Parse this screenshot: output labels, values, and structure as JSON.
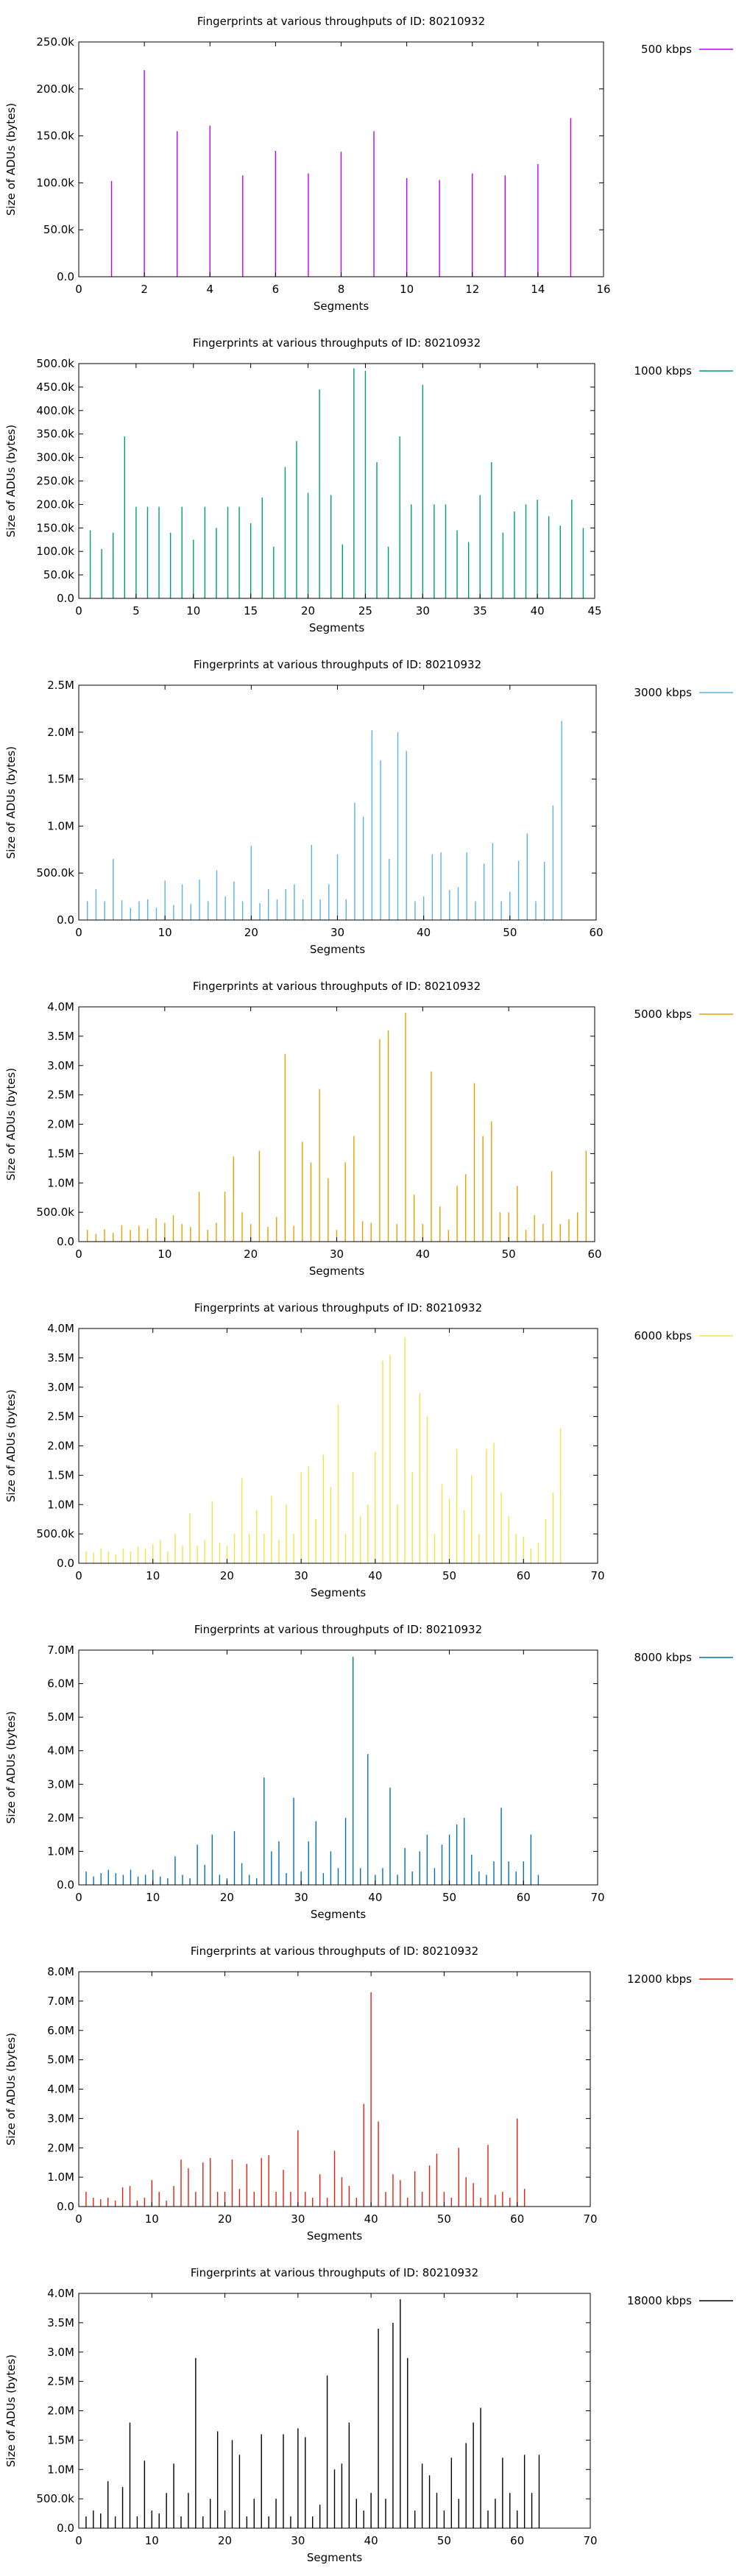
{
  "chart_data": [
    {
      "type": "bar",
      "title": "Fingerprints at various throughputs of ID: 80210932",
      "xlabel": "Segments",
      "ylabel": "Size of ADUs (bytes)",
      "series": [
        {
          "name": "500 kbps",
          "color": "#c000ff"
        }
      ],
      "xlim": [
        0,
        16
      ],
      "ylim": [
        0,
        250000
      ],
      "xticks": [
        0,
        2,
        4,
        6,
        8,
        10,
        12,
        14,
        16
      ],
      "yticks": [
        0,
        50000,
        100000,
        150000,
        200000,
        250000
      ],
      "ytick_labels": [
        "0.0",
        "50.0k",
        "100.0k",
        "150.0k",
        "200.0k",
        "250.0k"
      ],
      "grid": false,
      "legend_position": "top-right",
      "x": [
        1,
        2,
        3,
        4,
        5,
        6,
        7,
        8,
        9,
        10,
        11,
        12,
        13,
        14,
        15
      ],
      "values": [
        102000,
        220000,
        155000,
        161000,
        108000,
        134000,
        110000,
        133000,
        155000,
        105000,
        103000,
        110000,
        108000,
        120000,
        169000
      ]
    },
    {
      "type": "bar",
      "title": "Fingerprints at various throughputs of ID: 80210932",
      "xlabel": "Segments",
      "ylabel": "Size of ADUs (bytes)",
      "series": [
        {
          "name": "1000 kbps",
          "color": "#009e73"
        }
      ],
      "xlim": [
        0,
        45
      ],
      "ylim": [
        0,
        500000
      ],
      "xticks": [
        0,
        5,
        10,
        15,
        20,
        25,
        30,
        35,
        40,
        45
      ],
      "yticks": [
        0,
        50000,
        100000,
        150000,
        200000,
        250000,
        300000,
        350000,
        400000,
        450000,
        500000
      ],
      "ytick_labels": [
        "0.0",
        "50.0k",
        "100.0k",
        "150.0k",
        "200.0k",
        "250.0k",
        "300.0k",
        "350.0k",
        "400.0k",
        "450.0k",
        "500.0k"
      ],
      "grid": false,
      "legend_position": "top-right",
      "x": [
        1,
        2,
        3,
        4,
        5,
        6,
        7,
        8,
        9,
        10,
        11,
        12,
        13,
        14,
        15,
        16,
        17,
        18,
        19,
        20,
        21,
        22,
        23,
        24,
        25,
        26,
        27,
        28,
        29,
        30,
        31,
        32,
        33,
        34,
        35,
        36,
        37,
        38,
        39,
        40,
        41,
        42,
        43,
        44
      ],
      "values": [
        145000,
        105000,
        140000,
        345000,
        195000,
        195000,
        195000,
        140000,
        195000,
        125000,
        195000,
        150000,
        195000,
        195000,
        160000,
        215000,
        110000,
        280000,
        335000,
        225000,
        445000,
        220000,
        115000,
        490000,
        485000,
        290000,
        110000,
        345000,
        200000,
        455000,
        200000,
        200000,
        145000,
        120000,
        220000,
        290000,
        140000,
        185000,
        200000,
        210000,
        175000,
        155000,
        210000,
        150000
      ]
    },
    {
      "type": "bar",
      "title": "Fingerprints at various throughputs of ID: 80210932",
      "xlabel": "Segments",
      "ylabel": "Size of ADUs (bytes)",
      "series": [
        {
          "name": "3000 kbps",
          "color": "#56b4e9"
        }
      ],
      "xlim": [
        0,
        60
      ],
      "ylim": [
        0,
        2500000
      ],
      "xticks": [
        0,
        10,
        20,
        30,
        40,
        50,
        60
      ],
      "yticks": [
        0,
        500000,
        1000000,
        1500000,
        2000000,
        2500000
      ],
      "ytick_labels": [
        "0.0",
        "500.0k",
        "1.0M",
        "1.5M",
        "2.0M",
        "2.5M"
      ],
      "grid": false,
      "legend_position": "top-right",
      "x": [
        1,
        2,
        3,
        4,
        5,
        6,
        7,
        8,
        9,
        10,
        11,
        12,
        13,
        14,
        15,
        16,
        17,
        18,
        19,
        20,
        21,
        22,
        23,
        24,
        25,
        26,
        27,
        28,
        29,
        30,
        31,
        32,
        33,
        34,
        35,
        36,
        37,
        38,
        39,
        40,
        41,
        42,
        43,
        44,
        45,
        46,
        47,
        48,
        49,
        50,
        51,
        52,
        53,
        54,
        55,
        56
      ],
      "values": [
        200000,
        330000,
        200000,
        650000,
        210000,
        130000,
        200000,
        220000,
        130000,
        420000,
        160000,
        380000,
        170000,
        430000,
        200000,
        530000,
        250000,
        410000,
        200000,
        790000,
        180000,
        330000,
        220000,
        330000,
        380000,
        220000,
        800000,
        220000,
        380000,
        700000,
        220000,
        1250000,
        1100000,
        2020000,
        1700000,
        650000,
        2000000,
        1800000,
        200000,
        250000,
        700000,
        720000,
        320000,
        350000,
        720000,
        200000,
        600000,
        820000,
        200000,
        300000,
        630000,
        920000,
        200000,
        620000,
        1220000,
        2120000
      ]
    },
    {
      "type": "bar",
      "title": "Fingerprints at various throughputs of ID: 80210932",
      "xlabel": "Segments",
      "ylabel": "Size of ADUs (bytes)",
      "series": [
        {
          "name": "5000 kbps",
          "color": "#e69f00"
        }
      ],
      "xlim": [
        0,
        60
      ],
      "ylim": [
        0,
        4000000
      ],
      "xticks": [
        0,
        10,
        20,
        30,
        40,
        50,
        60
      ],
      "yticks": [
        0,
        500000,
        1000000,
        1500000,
        2000000,
        2500000,
        3000000,
        3500000,
        4000000
      ],
      "ytick_labels": [
        "0.0",
        "500.0k",
        "1.0M",
        "1.5M",
        "2.0M",
        "2.5M",
        "3.0M",
        "3.5M",
        "4.0M"
      ],
      "grid": false,
      "legend_position": "top-right",
      "x": [
        1,
        2,
        3,
        4,
        5,
        6,
        7,
        8,
        9,
        10,
        11,
        12,
        13,
        14,
        15,
        16,
        17,
        18,
        19,
        20,
        21,
        22,
        23,
        24,
        25,
        26,
        27,
        28,
        29,
        30,
        31,
        32,
        33,
        34,
        35,
        36,
        37,
        38,
        39,
        40,
        41,
        42,
        43,
        44,
        45,
        46,
        47,
        48,
        49,
        50,
        51,
        52,
        53,
        54,
        55,
        56,
        57,
        58,
        59
      ],
      "values": [
        200000,
        130000,
        210000,
        150000,
        280000,
        200000,
        270000,
        220000,
        400000,
        320000,
        450000,
        300000,
        250000,
        850000,
        200000,
        320000,
        850000,
        1450000,
        500000,
        300000,
        1550000,
        250000,
        420000,
        3200000,
        270000,
        1700000,
        1350000,
        2600000,
        1080000,
        200000,
        1350000,
        1800000,
        350000,
        320000,
        3450000,
        3600000,
        300000,
        3900000,
        800000,
        300000,
        2900000,
        600000,
        200000,
        950000,
        1150000,
        2700000,
        1800000,
        2050000,
        500000,
        500000,
        950000,
        200000,
        450000,
        300000,
        1200000,
        300000,
        380000,
        500000,
        1550000
      ]
    },
    {
      "type": "bar",
      "title": "Fingerprints at various throughputs of ID: 80210932",
      "xlabel": "Segments",
      "ylabel": "Size of ADUs (bytes)",
      "series": [
        {
          "name": "6000 kbps",
          "color": "#f0e442"
        }
      ],
      "xlim": [
        0,
        70
      ],
      "ylim": [
        0,
        4000000
      ],
      "xticks": [
        0,
        10,
        20,
        30,
        40,
        50,
        60,
        70
      ],
      "yticks": [
        0,
        500000,
        1000000,
        1500000,
        2000000,
        2500000,
        3000000,
        3500000,
        4000000
      ],
      "ytick_labels": [
        "0.0",
        "500.0k",
        "1.0M",
        "1.5M",
        "2.0M",
        "2.5M",
        "3.0M",
        "3.5M",
        "4.0M"
      ],
      "grid": false,
      "legend_position": "top-right",
      "x": [
        1,
        2,
        3,
        4,
        5,
        6,
        7,
        8,
        9,
        10,
        11,
        12,
        13,
        14,
        15,
        16,
        17,
        18,
        19,
        20,
        21,
        22,
        23,
        24,
        25,
        26,
        27,
        28,
        29,
        30,
        31,
        32,
        33,
        34,
        35,
        36,
        37,
        38,
        39,
        40,
        41,
        42,
        43,
        44,
        45,
        46,
        47,
        48,
        49,
        50,
        51,
        52,
        53,
        54,
        55,
        56,
        57,
        58,
        59,
        60,
        61,
        62,
        63,
        64,
        65
      ],
      "values": [
        200000,
        180000,
        250000,
        200000,
        150000,
        250000,
        200000,
        280000,
        250000,
        320000,
        400000,
        200000,
        500000,
        300000,
        850000,
        300000,
        400000,
        1050000,
        350000,
        300000,
        500000,
        1450000,
        500000,
        900000,
        500000,
        1150000,
        400000,
        1000000,
        500000,
        1550000,
        1650000,
        750000,
        1850000,
        1300000,
        2700000,
        500000,
        1550000,
        800000,
        1000000,
        1900000,
        3450000,
        3550000,
        1000000,
        3850000,
        1550000,
        2900000,
        2500000,
        500000,
        1350000,
        1100000,
        1950000,
        900000,
        1500000,
        500000,
        1950000,
        2050000,
        1200000,
        800000,
        500000,
        450000,
        250000,
        350000,
        750000,
        1200000,
        2300000
      ]
    },
    {
      "type": "bar",
      "title": "Fingerprints at various throughputs of ID: 80210932",
      "xlabel": "Segments",
      "ylabel": "Size of ADUs (bytes)",
      "series": [
        {
          "name": "8000 kbps",
          "color": "#0072b2"
        }
      ],
      "xlim": [
        0,
        70
      ],
      "ylim": [
        0,
        7000000
      ],
      "xticks": [
        0,
        10,
        20,
        30,
        40,
        50,
        60,
        70
      ],
      "yticks": [
        0,
        1000000,
        2000000,
        3000000,
        4000000,
        5000000,
        6000000,
        7000000
      ],
      "ytick_labels": [
        "0.0",
        "1.0M",
        "2.0M",
        "3.0M",
        "4.0M",
        "5.0M",
        "6.0M",
        "7.0M"
      ],
      "grid": false,
      "legend_position": "top-right",
      "x": [
        1,
        2,
        3,
        4,
        5,
        6,
        7,
        8,
        9,
        10,
        11,
        12,
        13,
        14,
        15,
        16,
        17,
        18,
        19,
        20,
        21,
        22,
        23,
        24,
        25,
        26,
        27,
        28,
        29,
        30,
        31,
        32,
        33,
        34,
        35,
        36,
        37,
        38,
        39,
        40,
        41,
        42,
        43,
        44,
        45,
        46,
        47,
        48,
        49,
        50,
        51,
        52,
        53,
        54,
        55,
        56,
        57,
        58,
        59,
        60,
        61,
        62
      ],
      "values": [
        400000,
        250000,
        350000,
        450000,
        350000,
        300000,
        450000,
        250000,
        300000,
        450000,
        250000,
        200000,
        850000,
        300000,
        200000,
        1200000,
        600000,
        1500000,
        300000,
        200000,
        1600000,
        650000,
        300000,
        200000,
        3200000,
        1000000,
        1300000,
        350000,
        2600000,
        400000,
        1300000,
        1900000,
        350000,
        1000000,
        500000,
        2000000,
        6800000,
        500000,
        3900000,
        300000,
        500000,
        2900000,
        300000,
        1100000,
        400000,
        1000000,
        1500000,
        500000,
        1200000,
        1500000,
        1800000,
        2000000,
        900000,
        400000,
        300000,
        700000,
        2300000,
        700000,
        400000,
        700000,
        1500000,
        300000
      ]
    },
    {
      "type": "bar",
      "title": "Fingerprints at various throughputs of ID: 80210932",
      "xlabel": "Segments",
      "ylabel": "Size of ADUs (bytes)",
      "series": [
        {
          "name": "12000 kbps",
          "color": "#e51e10"
        }
      ],
      "xlim": [
        0,
        70
      ],
      "ylim": [
        0,
        8000000
      ],
      "xticks": [
        0,
        10,
        20,
        30,
        40,
        50,
        60,
        70
      ],
      "yticks": [
        0,
        1000000,
        2000000,
        3000000,
        4000000,
        5000000,
        6000000,
        7000000,
        8000000
      ],
      "ytick_labels": [
        "0.0",
        "1.0M",
        "2.0M",
        "3.0M",
        "4.0M",
        "5.0M",
        "6.0M",
        "7.0M",
        "8.0M"
      ],
      "grid": false,
      "legend_position": "top-right",
      "x": [
        1,
        2,
        3,
        4,
        5,
        6,
        7,
        8,
        9,
        10,
        11,
        12,
        13,
        14,
        15,
        16,
        17,
        18,
        19,
        20,
        21,
        22,
        23,
        24,
        25,
        26,
        27,
        28,
        29,
        30,
        31,
        32,
        33,
        34,
        35,
        36,
        37,
        38,
        39,
        40,
        41,
        42,
        43,
        44,
        45,
        46,
        47,
        48,
        49,
        50,
        51,
        52,
        53,
        54,
        55,
        56,
        57,
        58,
        59,
        60,
        61
      ],
      "values": [
        500000,
        300000,
        250000,
        300000,
        200000,
        650000,
        700000,
        200000,
        300000,
        900000,
        500000,
        200000,
        700000,
        1600000,
        1300000,
        500000,
        1500000,
        1650000,
        500000,
        500000,
        1600000,
        600000,
        1450000,
        500000,
        1650000,
        1750000,
        500000,
        1250000,
        500000,
        2600000,
        500000,
        300000,
        1100000,
        300000,
        1900000,
        1000000,
        700000,
        300000,
        3500000,
        7300000,
        2900000,
        500000,
        1100000,
        900000,
        300000,
        1200000,
        500000,
        1400000,
        1800000,
        500000,
        300000,
        2000000,
        1000000,
        800000,
        300000,
        2100000,
        400000,
        500000,
        300000,
        3000000,
        600000
      ]
    },
    {
      "type": "bar",
      "title": "Fingerprints at various throughputs of ID: 80210932",
      "xlabel": "Segments",
      "ylabel": "Size of ADUs (bytes)",
      "series": [
        {
          "name": "18000 kbps",
          "color": "#000000"
        }
      ],
      "xlim": [
        0,
        70
      ],
      "ylim": [
        0,
        4000000
      ],
      "xticks": [
        0,
        10,
        20,
        30,
        40,
        50,
        60,
        70
      ],
      "yticks": [
        0,
        500000,
        1000000,
        1500000,
        2000000,
        2500000,
        3000000,
        3500000,
        4000000
      ],
      "ytick_labels": [
        "0.0",
        "500.0k",
        "1.0M",
        "1.5M",
        "2.0M",
        "2.5M",
        "3.0M",
        "3.5M",
        "4.0M"
      ],
      "grid": false,
      "legend_position": "top-right",
      "x": [
        1,
        2,
        3,
        4,
        5,
        6,
        7,
        8,
        9,
        10,
        11,
        12,
        13,
        14,
        15,
        16,
        17,
        18,
        19,
        20,
        21,
        22,
        23,
        24,
        25,
        26,
        27,
        28,
        29,
        30,
        31,
        32,
        33,
        34,
        35,
        36,
        37,
        38,
        39,
        40,
        41,
        42,
        43,
        44,
        45,
        46,
        47,
        48,
        49,
        50,
        51,
        52,
        53,
        54,
        55,
        56,
        57,
        58,
        59,
        60,
        61,
        62,
        63
      ],
      "values": [
        200000,
        300000,
        250000,
        800000,
        200000,
        700000,
        1800000,
        200000,
        1150000,
        300000,
        250000,
        600000,
        1100000,
        200000,
        600000,
        2900000,
        200000,
        500000,
        1650000,
        300000,
        1500000,
        1250000,
        200000,
        500000,
        1600000,
        200000,
        500000,
        1600000,
        200000,
        1700000,
        1550000,
        200000,
        400000,
        2600000,
        1000000,
        1100000,
        1800000,
        500000,
        300000,
        600000,
        3400000,
        500000,
        3500000,
        3900000,
        2900000,
        300000,
        1100000,
        900000,
        600000,
        300000,
        1200000,
        500000,
        1450000,
        1800000,
        2050000,
        300000,
        500000,
        1200000,
        600000,
        300000,
        1250000,
        600000,
        1250000
      ]
    }
  ]
}
